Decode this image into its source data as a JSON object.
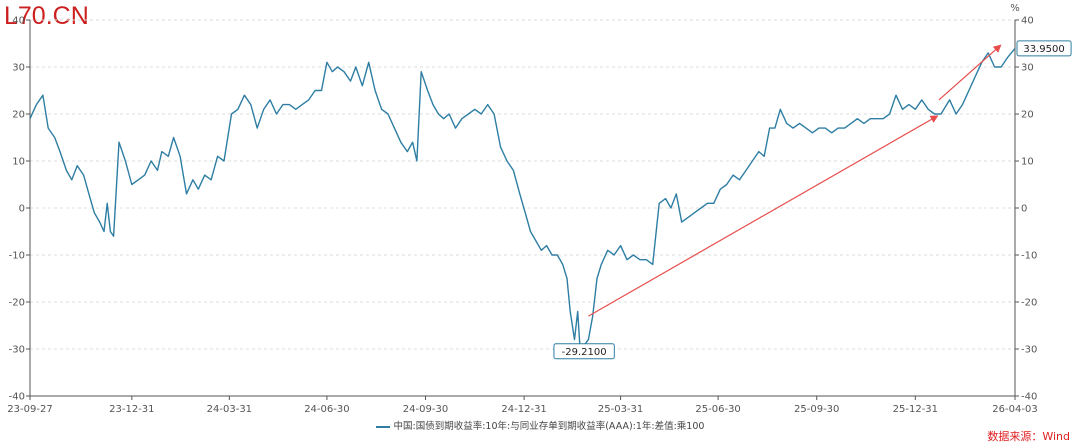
{
  "watermark": "L70.CN",
  "source": "数据来源：Wind",
  "legend": {
    "label": "中国:国债到期收益率:10年:与同业存单到期收益率(AAA):1年:差值:乘100"
  },
  "chart_data": {
    "type": "line",
    "ylim": [
      -40,
      40
    ],
    "yticks": [
      -40,
      -30,
      -20,
      -10,
      0,
      10,
      20,
      30,
      40
    ],
    "right_axis_unit": "%",
    "grid": true,
    "x_tick_labels": [
      "23-09-27",
      "23-12-31",
      "24-03-31",
      "24-06-30",
      "24-09-30",
      "24-12-31",
      "25-03-31",
      "25-06-30",
      "25-09-30",
      "25-12-31",
      "26-04-03"
    ],
    "x_tick_dates": [
      "2023-09-27",
      "2023-12-31",
      "2024-03-31",
      "2024-06-30",
      "2024-09-30",
      "2024-12-31",
      "2025-03-31",
      "2025-06-30",
      "2025-09-30",
      "2025-12-31",
      "2026-04-03"
    ],
    "color": "#2e7ea3",
    "series": [
      {
        "name": "中国:国债到期收益率:10年:与同业存单到期收益率(AAA):1年:差值:乘100",
        "points": [
          [
            "2023-09-27",
            19
          ],
          [
            "2023-10-03",
            22
          ],
          [
            "2023-10-09",
            24
          ],
          [
            "2023-10-14",
            17
          ],
          [
            "2023-10-20",
            15
          ],
          [
            "2023-10-25",
            12
          ],
          [
            "2023-10-31",
            8
          ],
          [
            "2023-11-05",
            6
          ],
          [
            "2023-11-10",
            9
          ],
          [
            "2023-11-16",
            7
          ],
          [
            "2023-11-21",
            3
          ],
          [
            "2023-11-26",
            -1
          ],
          [
            "2023-12-01",
            -3
          ],
          [
            "2023-12-05",
            -5
          ],
          [
            "2023-12-08",
            1
          ],
          [
            "2023-12-11",
            -5
          ],
          [
            "2023-12-14",
            -6
          ],
          [
            "2023-12-19",
            14
          ],
          [
            "2023-12-25",
            10
          ],
          [
            "2023-12-31",
            5
          ],
          [
            "2024-01-06",
            6
          ],
          [
            "2024-01-12",
            7
          ],
          [
            "2024-01-18",
            10
          ],
          [
            "2024-01-24",
            8
          ],
          [
            "2024-01-28",
            12
          ],
          [
            "2024-02-03",
            11
          ],
          [
            "2024-02-08",
            15
          ],
          [
            "2024-02-14",
            11
          ],
          [
            "2024-02-20",
            3
          ],
          [
            "2024-02-26",
            6
          ],
          [
            "2024-03-02",
            4
          ],
          [
            "2024-03-08",
            7
          ],
          [
            "2024-03-14",
            6
          ],
          [
            "2024-03-20",
            11
          ],
          [
            "2024-03-26",
            10
          ],
          [
            "2024-04-02",
            20
          ],
          [
            "2024-04-08",
            21
          ],
          [
            "2024-04-14",
            24
          ],
          [
            "2024-04-20",
            22
          ],
          [
            "2024-04-26",
            17
          ],
          [
            "2024-05-02",
            21
          ],
          [
            "2024-05-08",
            23
          ],
          [
            "2024-05-14",
            20
          ],
          [
            "2024-05-20",
            22
          ],
          [
            "2024-05-26",
            22
          ],
          [
            "2024-06-01",
            21
          ],
          [
            "2024-06-07",
            22
          ],
          [
            "2024-06-13",
            23
          ],
          [
            "2024-06-19",
            25
          ],
          [
            "2024-06-25",
            25
          ],
          [
            "2024-06-30",
            31
          ],
          [
            "2024-07-05",
            29
          ],
          [
            "2024-07-10",
            30
          ],
          [
            "2024-07-16",
            29
          ],
          [
            "2024-07-22",
            27
          ],
          [
            "2024-07-27",
            30
          ],
          [
            "2024-08-02",
            26
          ],
          [
            "2024-08-08",
            31
          ],
          [
            "2024-08-14",
            25
          ],
          [
            "2024-08-20",
            21
          ],
          [
            "2024-08-26",
            20
          ],
          [
            "2024-09-01",
            17
          ],
          [
            "2024-09-07",
            14
          ],
          [
            "2024-09-13",
            12
          ],
          [
            "2024-09-18",
            14
          ],
          [
            "2024-09-22",
            10
          ],
          [
            "2024-09-26",
            29
          ],
          [
            "2024-10-02",
            25
          ],
          [
            "2024-10-07",
            22
          ],
          [
            "2024-10-12",
            20
          ],
          [
            "2024-10-17",
            19
          ],
          [
            "2024-10-22",
            20
          ],
          [
            "2024-10-28",
            17
          ],
          [
            "2024-11-03",
            19
          ],
          [
            "2024-11-09",
            20
          ],
          [
            "2024-11-15",
            21
          ],
          [
            "2024-11-21",
            20
          ],
          [
            "2024-11-27",
            22
          ],
          [
            "2024-12-03",
            20
          ],
          [
            "2024-12-09",
            13
          ],
          [
            "2024-12-15",
            10
          ],
          [
            "2024-12-21",
            8
          ],
          [
            "2024-12-27",
            3
          ],
          [
            "2025-01-01",
            -1
          ],
          [
            "2025-01-06",
            -5
          ],
          [
            "2025-01-11",
            -7
          ],
          [
            "2025-01-16",
            -9
          ],
          [
            "2025-01-21",
            -8
          ],
          [
            "2025-01-26",
            -10
          ],
          [
            "2025-01-31",
            -10
          ],
          [
            "2025-02-05",
            -12
          ],
          [
            "2025-02-09",
            -15
          ],
          [
            "2025-02-12",
            -22
          ],
          [
            "2025-02-16",
            -28
          ],
          [
            "2025-02-19",
            -22
          ],
          [
            "2025-02-21",
            -29
          ],
          [
            "2025-02-25",
            -29.21
          ],
          [
            "2025-03-01",
            -28
          ],
          [
            "2025-03-05",
            -23
          ],
          [
            "2025-03-09",
            -15
          ],
          [
            "2025-03-13",
            -12
          ],
          [
            "2025-03-19",
            -9
          ],
          [
            "2025-03-25",
            -10
          ],
          [
            "2025-03-31",
            -8
          ],
          [
            "2025-04-06",
            -11
          ],
          [
            "2025-04-12",
            -10
          ],
          [
            "2025-04-18",
            -11
          ],
          [
            "2025-04-24",
            -11
          ],
          [
            "2025-04-30",
            -12
          ],
          [
            "2025-05-06",
            1
          ],
          [
            "2025-05-12",
            2
          ],
          [
            "2025-05-17",
            0
          ],
          [
            "2025-05-22",
            3
          ],
          [
            "2025-05-27",
            -3
          ],
          [
            "2025-06-02",
            -2
          ],
          [
            "2025-06-08",
            -1
          ],
          [
            "2025-06-14",
            0
          ],
          [
            "2025-06-20",
            1
          ],
          [
            "2025-06-26",
            1
          ],
          [
            "2025-07-02",
            4
          ],
          [
            "2025-07-08",
            5
          ],
          [
            "2025-07-14",
            7
          ],
          [
            "2025-07-20",
            6
          ],
          [
            "2025-07-26",
            8
          ],
          [
            "2025-08-01",
            10
          ],
          [
            "2025-08-07",
            12
          ],
          [
            "2025-08-12",
            11
          ],
          [
            "2025-08-17",
            17
          ],
          [
            "2025-08-22",
            17
          ],
          [
            "2025-08-27",
            21
          ],
          [
            "2025-09-02",
            18
          ],
          [
            "2025-09-08",
            17
          ],
          [
            "2025-09-14",
            18
          ],
          [
            "2025-09-20",
            17
          ],
          [
            "2025-09-26",
            16
          ],
          [
            "2025-10-02",
            17
          ],
          [
            "2025-10-08",
            17
          ],
          [
            "2025-10-14",
            16
          ],
          [
            "2025-10-20",
            17
          ],
          [
            "2025-10-26",
            17
          ],
          [
            "2025-11-01",
            18
          ],
          [
            "2025-11-07",
            19
          ],
          [
            "2025-11-13",
            18
          ],
          [
            "2025-11-19",
            19
          ],
          [
            "2025-11-25",
            19
          ],
          [
            "2025-12-01",
            19
          ],
          [
            "2025-12-07",
            20
          ],
          [
            "2025-12-13",
            24
          ],
          [
            "2025-12-19",
            21
          ],
          [
            "2025-12-25",
            22
          ],
          [
            "2025-12-31",
            21
          ],
          [
            "2026-01-06",
            23
          ],
          [
            "2026-01-12",
            21
          ],
          [
            "2026-01-18",
            20
          ],
          [
            "2026-01-24",
            20
          ],
          [
            "2026-02-01",
            23
          ],
          [
            "2026-02-07",
            20
          ],
          [
            "2026-02-13",
            22
          ],
          [
            "2026-02-19",
            25
          ],
          [
            "2026-02-25",
            28
          ],
          [
            "2026-03-03",
            31
          ],
          [
            "2026-03-09",
            33
          ],
          [
            "2026-03-15",
            30
          ],
          [
            "2026-03-21",
            30
          ],
          [
            "2026-03-27",
            32
          ],
          [
            "2026-04-03",
            33.95
          ]
        ]
      }
    ],
    "annotations": [
      {
        "date": "2025-02-25",
        "value": -29.21,
        "label": "-29.2100"
      },
      {
        "date": "2026-04-03",
        "value": 33.95,
        "label": "33.9500"
      }
    ],
    "arrows": [
      {
        "from": [
          "2025-03-01",
          -23
        ],
        "to": [
          "2026-01-20",
          19.5
        ],
        "color": "#e84c4c"
      },
      {
        "from": [
          "2026-01-22",
          23
        ],
        "to": [
          "2026-03-20",
          34.5
        ],
        "color": "#e84c4c"
      }
    ]
  }
}
